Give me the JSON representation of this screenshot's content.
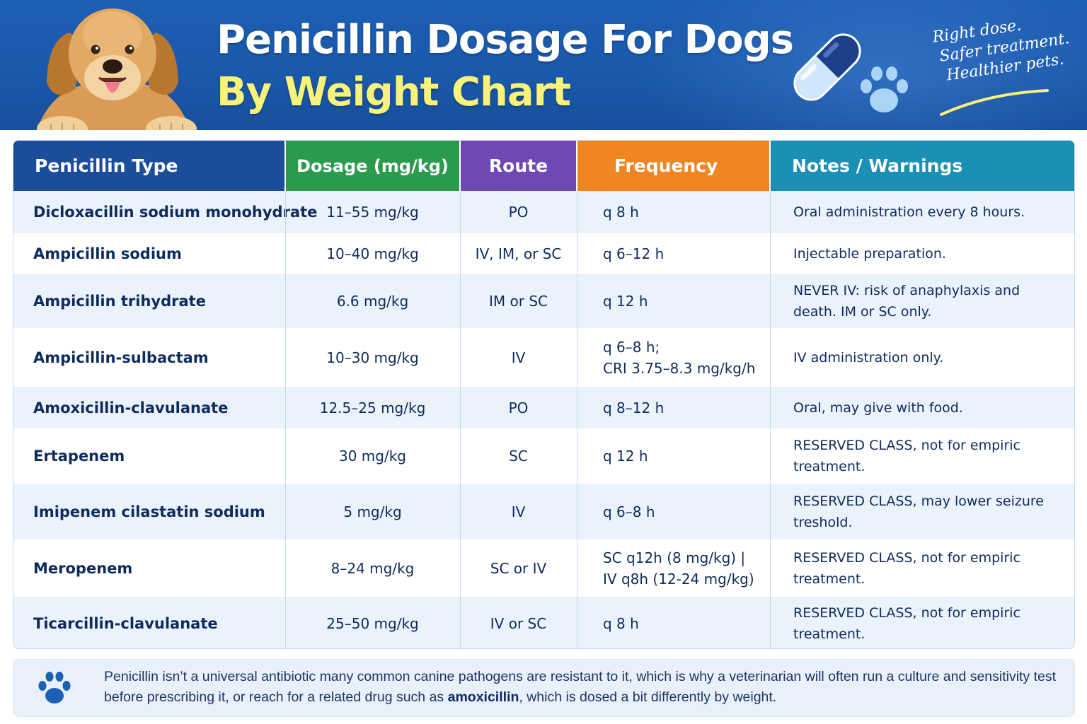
{
  "header": {
    "title_line1": "Penicillin Dosage For Dogs",
    "title_line2": "By Weight Chart",
    "tagline": [
      "Right dose.",
      "Safer treatment.",
      "Healthier pets."
    ],
    "icons": [
      "dog-photo",
      "capsule-icon",
      "paw-icon"
    ],
    "colors": {
      "banner": "#1d5fb4",
      "title_accent": "#f6f27a"
    }
  },
  "table": {
    "headers": [
      {
        "label": "Penicillin Type",
        "color": "#1b4d9a"
      },
      {
        "label": "Dosage (mg/kg)",
        "color": "#2a9a4d"
      },
      {
        "label": "Route",
        "color": "#7048b4"
      },
      {
        "label": "Frequency",
        "color": "#f08523"
      },
      {
        "label": "Notes / Warnings",
        "color": "#1c8fb4"
      }
    ],
    "rows": [
      {
        "type": "Dicloxacillin sodium monohydrate",
        "dosage": "11–55 mg/kg",
        "route": "PO",
        "frequency": "q 8 h",
        "notes": "Oral administration every 8 hours."
      },
      {
        "type": "Ampicillin sodium",
        "dosage": "10–40 mg/kg",
        "route": "IV, IM, or SC",
        "frequency": "q 6–12 h",
        "notes": "Injectable preparation."
      },
      {
        "type": "Ampicillin trihydrate",
        "dosage": "6.6 mg/kg",
        "route": "IM or SC",
        "frequency": "q 12 h",
        "notes": "NEVER IV: risk of anaphylaxis and death. IM or SC only."
      },
      {
        "type": "Ampicillin-sulbactam",
        "dosage": "10–30 mg/kg",
        "route": "IV",
        "frequency": "q 6–8 h;\nCRI 3.75–8.3 mg/kg/h",
        "notes": "IV administration only."
      },
      {
        "type": "Amoxicillin-clavulanate",
        "dosage": "12.5–25 mg/kg",
        "route": "PO",
        "frequency": "q 8–12 h",
        "notes": "Oral, may give with food."
      },
      {
        "type": "Ertapenem",
        "dosage": "30 mg/kg",
        "route": "SC",
        "frequency": "q 12 h",
        "notes": "RESERVED CLASS, not for empiric treatment."
      },
      {
        "type": "Imipenem cilastatin sodium",
        "dosage": "5 mg/kg",
        "route": "IV",
        "frequency": "q 6–8 h",
        "notes": "RESERVED CLASS, may lower seizure treshold."
      },
      {
        "type": "Meropenem",
        "dosage": "8–24 mg/kg",
        "route": "SC or IV",
        "frequency": "SC q12h (8 mg/kg) |\nIV q8h (12-24 mg/kg)",
        "notes": "RESERVED CLASS, not for empiric treatment."
      },
      {
        "type": "Ticarcillin-clavulanate",
        "dosage": "25–50 mg/kg",
        "route": "IV or SC",
        "frequency": "q 8 h",
        "notes": "RESERVED CLASS, not for empiric treatment."
      }
    ]
  },
  "footer": {
    "icon": "paw-icon",
    "text_before": "Penicillin isn’t a universal antibiotic many common canine pathogens are resistant to it, which is why a veterinarian will often run a culture and sensitivity test before prescribing it, or reach for a related drug such as ",
    "text_bold": "amoxicillin",
    "text_after": ", which is dosed a bit differently by weight."
  }
}
